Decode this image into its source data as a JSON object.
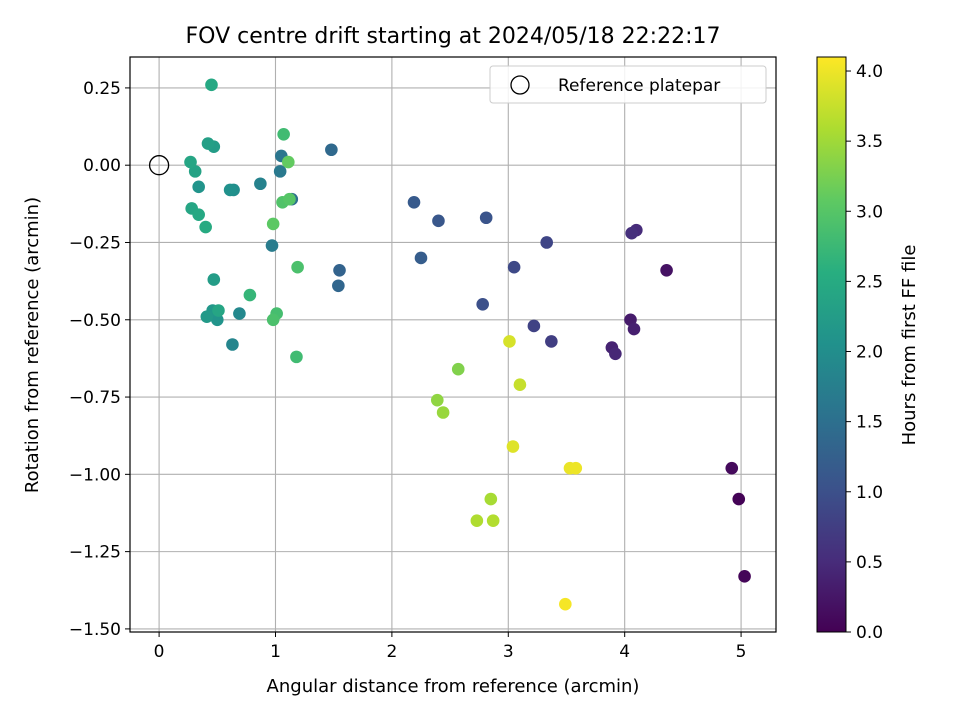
{
  "chart_data": {
    "type": "scatter",
    "title": "FOV centre drift starting at 2024/05/18 22:22:17",
    "xlabel": "Angular distance from reference (arcmin)",
    "ylabel": "Rotation from reference (arcmin)",
    "xlim": [
      -0.25,
      5.3
    ],
    "ylim": [
      -1.51,
      0.35
    ],
    "xticks": [
      0,
      1,
      2,
      3,
      4,
      5
    ],
    "xtick_labels": [
      "0",
      "1",
      "2",
      "3",
      "4",
      "5"
    ],
    "yticks": [
      0.25,
      0.0,
      -0.25,
      -0.5,
      -0.75,
      -1.0,
      -1.25,
      -1.5
    ],
    "ytick_labels": [
      "0.25",
      "0.00",
      "−0.25",
      "−0.50",
      "−0.75",
      "−1.00",
      "−1.25",
      "−1.50"
    ],
    "grid": true,
    "legend": {
      "position": "top-right",
      "entries": [
        "Reference platepar"
      ]
    },
    "reference_point": {
      "x": 0.0,
      "y": 0.0,
      "label": "Reference platepar"
    },
    "colorbar": {
      "label": "Hours from first FF file",
      "colormap": "viridis",
      "range": [
        0.0,
        4.1
      ],
      "ticks": [
        0.0,
        0.5,
        1.0,
        1.5,
        2.0,
        2.5,
        3.0,
        3.5,
        4.0
      ],
      "tick_labels": [
        "0.0",
        "0.5",
        "1.0",
        "1.5",
        "2.0",
        "2.5",
        "3.0",
        "3.5",
        "4.0"
      ]
    },
    "points": [
      {
        "x": 4.98,
        "y": -1.08,
        "c": 0.02
      },
      {
        "x": 5.03,
        "y": -1.33,
        "c": 0.05
      },
      {
        "x": 4.92,
        "y": -0.98,
        "c": 0.1
      },
      {
        "x": 4.36,
        "y": -0.34,
        "c": 0.2
      },
      {
        "x": 4.05,
        "y": -0.5,
        "c": 0.3
      },
      {
        "x": 4.08,
        "y": -0.53,
        "c": 0.35
      },
      {
        "x": 3.89,
        "y": -0.59,
        "c": 0.4
      },
      {
        "x": 3.92,
        "y": -0.61,
        "c": 0.45
      },
      {
        "x": 4.1,
        "y": -0.21,
        "c": 0.5
      },
      {
        "x": 4.06,
        "y": -0.22,
        "c": 0.55
      },
      {
        "x": 3.37,
        "y": -0.57,
        "c": 0.75
      },
      {
        "x": 3.22,
        "y": -0.52,
        "c": 0.8
      },
      {
        "x": 3.33,
        "y": -0.25,
        "c": 0.85
      },
      {
        "x": 3.05,
        "y": -0.33,
        "c": 0.9
      },
      {
        "x": 2.78,
        "y": -0.45,
        "c": 1.0
      },
      {
        "x": 2.81,
        "y": -0.17,
        "c": 1.05
      },
      {
        "x": 2.4,
        "y": -0.18,
        "c": 1.1
      },
      {
        "x": 2.19,
        "y": -0.12,
        "c": 1.15
      },
      {
        "x": 2.25,
        "y": -0.3,
        "c": 1.2
      },
      {
        "x": 1.55,
        "y": -0.34,
        "c": 1.3
      },
      {
        "x": 1.54,
        "y": -0.39,
        "c": 1.35
      },
      {
        "x": 1.48,
        "y": 0.05,
        "c": 1.4
      },
      {
        "x": 1.14,
        "y": -0.11,
        "c": 1.5
      },
      {
        "x": 1.05,
        "y": 0.03,
        "c": 1.6
      },
      {
        "x": 1.04,
        "y": -0.02,
        "c": 1.65
      },
      {
        "x": 0.97,
        "y": -0.26,
        "c": 1.7
      },
      {
        "x": 0.87,
        "y": -0.06,
        "c": 1.8
      },
      {
        "x": 0.63,
        "y": -0.58,
        "c": 1.85
      },
      {
        "x": 0.69,
        "y": -0.48,
        "c": 1.9
      },
      {
        "x": 0.64,
        "y": -0.08,
        "c": 2.0
      },
      {
        "x": 0.61,
        "y": -0.08,
        "c": 2.05
      },
      {
        "x": 0.5,
        "y": -0.5,
        "c": 2.1
      },
      {
        "x": 0.46,
        "y": -0.47,
        "c": 2.15
      },
      {
        "x": 0.41,
        "y": -0.49,
        "c": 2.2
      },
      {
        "x": 0.47,
        "y": -0.37,
        "c": 2.25
      },
      {
        "x": 0.34,
        "y": -0.07,
        "c": 2.1
      },
      {
        "x": 0.47,
        "y": 0.06,
        "c": 2.25
      },
      {
        "x": 0.42,
        "y": 0.07,
        "c": 2.3
      },
      {
        "x": 0.31,
        "y": -0.02,
        "c": 2.35
      },
      {
        "x": 0.27,
        "y": 0.01,
        "c": 2.4
      },
      {
        "x": 0.28,
        "y": -0.14,
        "c": 2.4
      },
      {
        "x": 0.34,
        "y": -0.16,
        "c": 2.45
      },
      {
        "x": 0.4,
        "y": -0.2,
        "c": 2.5
      },
      {
        "x": 0.45,
        "y": 0.26,
        "c": 2.45
      },
      {
        "x": 0.51,
        "y": -0.47,
        "c": 2.4
      },
      {
        "x": 0.78,
        "y": -0.42,
        "c": 2.7
      },
      {
        "x": 1.07,
        "y": 0.1,
        "c": 2.8
      },
      {
        "x": 1.01,
        "y": -0.48,
        "c": 2.85
      },
      {
        "x": 0.98,
        "y": -0.5,
        "c": 2.9
      },
      {
        "x": 1.19,
        "y": -0.33,
        "c": 2.9
      },
      {
        "x": 1.18,
        "y": -0.62,
        "c": 2.8
      },
      {
        "x": 1.06,
        "y": -0.12,
        "c": 2.95
      },
      {
        "x": 1.12,
        "y": -0.11,
        "c": 3.0
      },
      {
        "x": 0.98,
        "y": -0.19,
        "c": 3.05
      },
      {
        "x": 1.11,
        "y": 0.01,
        "c": 3.1
      },
      {
        "x": 2.57,
        "y": -0.66,
        "c": 3.3
      },
      {
        "x": 2.39,
        "y": -0.76,
        "c": 3.4
      },
      {
        "x": 2.44,
        "y": -0.8,
        "c": 3.45
      },
      {
        "x": 2.85,
        "y": -1.08,
        "c": 3.55
      },
      {
        "x": 2.73,
        "y": -1.15,
        "c": 3.6
      },
      {
        "x": 2.87,
        "y": -1.15,
        "c": 3.62
      },
      {
        "x": 3.1,
        "y": -0.71,
        "c": 3.75
      },
      {
        "x": 3.01,
        "y": -0.57,
        "c": 3.85
      },
      {
        "x": 3.04,
        "y": -0.91,
        "c": 3.9
      },
      {
        "x": 3.53,
        "y": -0.98,
        "c": 3.98
      },
      {
        "x": 3.58,
        "y": -0.98,
        "c": 4.0
      },
      {
        "x": 3.49,
        "y": -1.42,
        "c": 4.05
      }
    ]
  }
}
